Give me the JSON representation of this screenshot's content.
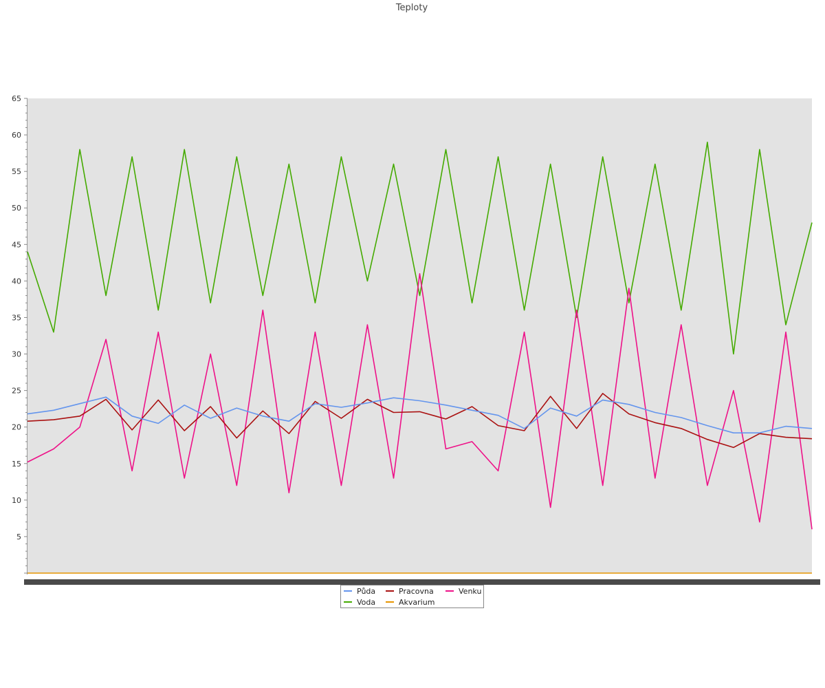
{
  "chart_data": {
    "type": "line",
    "title": "Teploty",
    "xlabel": "",
    "ylabel": "",
    "ylim": [
      0,
      65
    ],
    "yticks": [
      5,
      10,
      15,
      20,
      25,
      30,
      35,
      40,
      45,
      50,
      55,
      60,
      65
    ],
    "grid": false,
    "legend_position": "bottom-center",
    "background": "#e3e3e3",
    "x": [
      0,
      3,
      6,
      9,
      12,
      15,
      18,
      21,
      24,
      27,
      30,
      33,
      36,
      39,
      42,
      45,
      48,
      51,
      54,
      57,
      60,
      63,
      66,
      69,
      72,
      75,
      78,
      81,
      84,
      87,
      90
    ],
    "series": [
      {
        "name": "Půda",
        "color": "#6495ed",
        "values": [
          21.8,
          22.3,
          23.2,
          24.1,
          21.5,
          20.5,
          23,
          21.2,
          22.6,
          21.5,
          20.8,
          23.2,
          22.7,
          23.3,
          24,
          23.6,
          23,
          22.3,
          21.6,
          19.8,
          22.6,
          21.5,
          23.7,
          23.1,
          22,
          21.3,
          20.2,
          19.2,
          19.2,
          20.1,
          19.8
        ]
      },
      {
        "name": "Voda",
        "color": "#44aa00",
        "values": [
          44,
          33,
          58,
          38,
          57,
          36,
          58,
          37,
          57,
          38,
          56,
          37,
          57,
          40,
          56,
          38,
          58,
          37,
          57,
          36,
          56,
          35,
          57,
          37,
          56,
          36,
          59,
          30,
          58,
          34,
          48
        ]
      },
      {
        "name": "Pracovna",
        "color": "#aa1111",
        "values": [
          20.8,
          21,
          21.5,
          23.8,
          19.6,
          23.7,
          19.5,
          22.8,
          18.5,
          22.2,
          19.1,
          23.5,
          21.2,
          23.8,
          22,
          22.1,
          21.1,
          22.8,
          20.2,
          19.5,
          24.2,
          19.8,
          24.6,
          21.8,
          20.6,
          19.8,
          18.3,
          17.2,
          19.1,
          18.6,
          18.4
        ]
      },
      {
        "name": "Akvarium",
        "color": "#e69500",
        "values": [
          0,
          0,
          0,
          0,
          0,
          0,
          0,
          0,
          0,
          0,
          0,
          0,
          0,
          0,
          0,
          0,
          0,
          0,
          0,
          0,
          0,
          0,
          0,
          0,
          0,
          0,
          0,
          0,
          0,
          0,
          0
        ]
      },
      {
        "name": "Venku",
        "color": "#ee1188",
        "values": [
          15.2,
          17,
          20,
          32,
          14,
          33,
          13,
          30,
          12,
          36,
          11,
          33,
          12,
          34,
          13,
          41,
          17,
          18,
          14,
          33,
          9,
          36,
          12,
          39,
          13,
          34,
          12,
          25,
          7,
          33,
          6
        ]
      }
    ]
  },
  "legend": {
    "items": [
      {
        "label": "Půda",
        "color": "#6495ed"
      },
      {
        "label": "Pracovna",
        "color": "#aa1111"
      },
      {
        "label": "Venku",
        "color": "#ee1188"
      },
      {
        "label": "Voda",
        "color": "#44aa00"
      },
      {
        "label": "Akvarium",
        "color": "#e69500"
      }
    ]
  }
}
